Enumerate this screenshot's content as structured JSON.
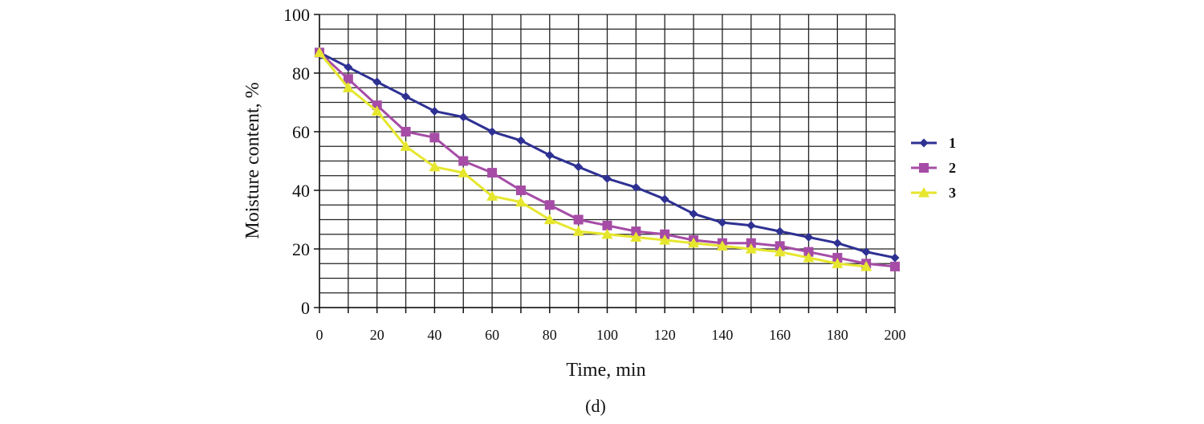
{
  "caption": "(d)",
  "chart_data": {
    "type": "line",
    "title": "",
    "xlabel": "Time, min",
    "ylabel": "Moisture content, %",
    "xlim": [
      0,
      200
    ],
    "ylim": [
      0,
      100
    ],
    "xticks": [
      "0",
      "20",
      "40",
      "60",
      "80",
      "100",
      "120",
      "140",
      "160",
      "180",
      "200"
    ],
    "yticks": [
      "0",
      "20",
      "40",
      "60",
      "80",
      "100"
    ],
    "grid": true,
    "legend_position": "right",
    "series": [
      {
        "name": "1",
        "color": "#2E3192",
        "marker": "diamond",
        "x": [
          0,
          10,
          20,
          30,
          40,
          50,
          60,
          70,
          80,
          90,
          100,
          110,
          120,
          130,
          140,
          150,
          160,
          170,
          180,
          190,
          200
        ],
        "y": [
          87,
          82,
          77,
          72,
          67,
          65,
          60,
          57,
          52,
          48,
          44,
          41,
          37,
          32,
          29,
          28,
          26,
          24,
          22,
          19,
          17
        ]
      },
      {
        "name": "2",
        "color": "#A64CA6",
        "marker": "square",
        "x": [
          0,
          10,
          20,
          30,
          40,
          50,
          60,
          70,
          80,
          90,
          100,
          110,
          120,
          130,
          140,
          150,
          160,
          170,
          180,
          190,
          200
        ],
        "y": [
          87,
          78,
          69,
          60,
          58,
          50,
          46,
          40,
          35,
          30,
          28,
          26,
          25,
          23,
          22,
          22,
          21,
          19,
          17,
          15,
          14
        ]
      },
      {
        "name": "3",
        "color": "#E6E62E",
        "marker": "triangle",
        "x": [
          0,
          10,
          20,
          30,
          40,
          50,
          60,
          70,
          80,
          90,
          100,
          110,
          120,
          130,
          140,
          150,
          160,
          170,
          180,
          190
        ],
        "y": [
          87,
          75,
          67,
          55,
          48,
          46,
          38,
          36,
          30,
          26,
          25,
          24,
          23,
          22,
          21,
          20,
          19,
          17,
          15,
          14
        ]
      }
    ]
  }
}
